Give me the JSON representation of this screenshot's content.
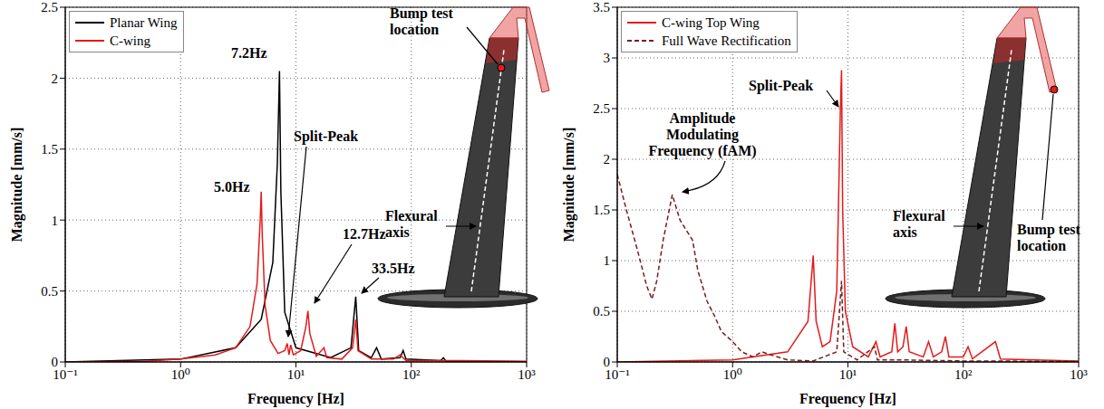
{
  "chart_data": [
    {
      "type": "line",
      "x_label": "Frequency [Hz]",
      "y_label": "Magnitude [mm/s]",
      "log": "x",
      "grid": true,
      "legend": "upper left",
      "xlim": [
        0.1,
        1000
      ],
      "xticks": [
        {
          "value": 0.1,
          "label": "10⁻¹"
        },
        {
          "value": 1,
          "label": "10⁰"
        },
        {
          "value": 10,
          "label": "10¹"
        },
        {
          "value": 100,
          "label": "10²"
        },
        {
          "value": 1000,
          "label": "10³"
        }
      ],
      "ylim": [
        0,
        2.5
      ],
      "yticks": [
        0,
        0.5,
        1,
        1.5,
        2,
        2.5
      ],
      "series": [
        {
          "name": "Planar Wing",
          "color": "#000000",
          "line_style": "solid",
          "x": [
            0.1,
            1,
            3,
            5,
            6.3,
            6.9,
            7.2,
            7.4,
            8,
            10,
            20,
            30,
            33,
            35,
            45,
            50,
            55,
            80,
            85,
            90,
            180,
            190,
            200,
            1000
          ],
          "values": [
            0,
            0.02,
            0.1,
            0.3,
            0.7,
            1.4,
            2.05,
            1.2,
            0.35,
            0.1,
            0.03,
            0.1,
            0.46,
            0.08,
            0.03,
            0.1,
            0.02,
            0.03,
            0.08,
            0.02,
            0.01,
            0.03,
            0.005,
            0.002
          ]
        },
        {
          "name": "C-wing",
          "color": "#e41a1c",
          "line_style": "solid",
          "x": [
            0.1,
            0.5,
            1,
            2,
            3,
            4,
            4.6,
            4.9,
            5.0,
            5.1,
            5.4,
            6,
            7,
            8,
            8.4,
            8.7,
            9.0,
            9.5,
            11,
            12.2,
            12.7,
            13.2,
            15,
            17.5,
            18.5,
            25,
            31,
            33,
            34.5,
            45,
            70,
            80,
            90,
            200,
            1000
          ],
          "values": [
            0,
            0.005,
            0.02,
            0.05,
            0.1,
            0.25,
            0.55,
            1.0,
            1.2,
            0.9,
            0.4,
            0.15,
            0.06,
            0.08,
            0.13,
            0.05,
            0.12,
            0.05,
            0.08,
            0.25,
            0.36,
            0.2,
            0.04,
            0.1,
            0.03,
            0.02,
            0.1,
            0.3,
            0.08,
            0.02,
            0.02,
            0.05,
            0.01,
            0.01,
            0.005
          ]
        }
      ],
      "annotations": [
        "7.2Hz",
        "5.0Hz",
        "Split-Peak",
        "12.7Hz",
        "33.5Hz",
        "Bump test location",
        "Flexural axis"
      ]
    },
    {
      "type": "line",
      "x_label": "Frequency [Hz]",
      "y_label": "Magnitude [mm/s]",
      "log": "x",
      "grid": true,
      "legend": "upper left",
      "xlim": [
        0.1,
        1000
      ],
      "xticks": [
        {
          "value": 0.1,
          "label": "10⁻¹"
        },
        {
          "value": 1,
          "label": "10⁰"
        },
        {
          "value": 10,
          "label": "10¹"
        },
        {
          "value": 100,
          "label": "10²"
        },
        {
          "value": 1000,
          "label": "10³"
        }
      ],
      "ylim": [
        0,
        3.5
      ],
      "yticks": [
        0,
        0.5,
        1,
        1.5,
        2,
        2.5,
        3,
        3.5
      ],
      "series": [
        {
          "name": "C-wing Top Wing",
          "color": "#e41a1c",
          "line_style": "solid",
          "x": [
            0.1,
            1,
            3,
            4.5,
            5.0,
            5.3,
            6,
            7,
            8,
            8.6,
            8.8,
            9.0,
            9.5,
            11,
            15,
            17.5,
            19,
            24,
            25.5,
            27,
            30,
            32,
            34,
            45,
            50,
            55,
            65,
            70,
            75,
            100,
            110,
            120,
            190,
            210,
            1000
          ],
          "values": [
            0,
            0.02,
            0.1,
            0.4,
            1.05,
            0.4,
            0.15,
            0.2,
            0.7,
            2.5,
            2.88,
            1.5,
            0.5,
            0.15,
            0.05,
            0.2,
            0.05,
            0.1,
            0.38,
            0.1,
            0.15,
            0.35,
            0.1,
            0.05,
            0.2,
            0.05,
            0.1,
            0.25,
            0.05,
            0.05,
            0.15,
            0.03,
            0.2,
            0.03,
            0.01
          ]
        },
        {
          "name": "Full Wave Rectification",
          "color": "#7b1c1c",
          "line_style": "dashed",
          "x": [
            0.1,
            0.12,
            0.15,
            0.18,
            0.2,
            0.22,
            0.25,
            0.3,
            0.35,
            0.45,
            0.5,
            0.6,
            0.7,
            0.8,
            1.0,
            1.2,
            1.5,
            1.8,
            2.0,
            3,
            5,
            8,
            8.8,
            9.2,
            12,
            17,
            18,
            30,
            100,
            1000
          ],
          "values": [
            1.85,
            1.5,
            1.1,
            0.75,
            0.62,
            0.8,
            1.2,
            1.65,
            1.4,
            1.2,
            0.9,
            0.6,
            0.45,
            0.3,
            0.2,
            0.1,
            0.05,
            0.1,
            0.08,
            0.02,
            0.01,
            0.1,
            0.8,
            0.1,
            0.02,
            0.15,
            0.02,
            0.02,
            0.01,
            0.005
          ]
        }
      ],
      "annotations": [
        "Split-Peak",
        "Amplitude Modulating Frequency (fAM)",
        "Bump test location",
        "Flexural axis"
      ]
    }
  ]
}
